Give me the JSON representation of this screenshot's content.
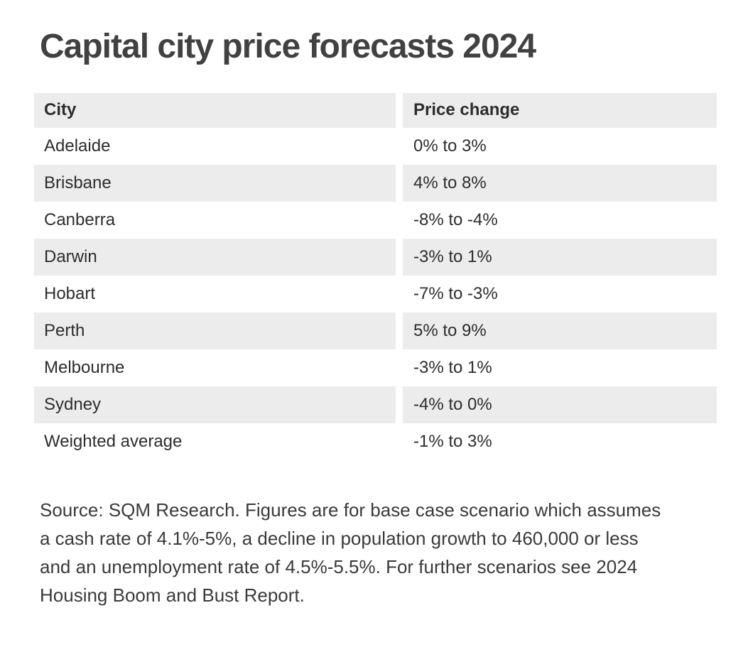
{
  "title": "Capital city price forecasts 2024",
  "chart_data": {
    "type": "table",
    "title": "Capital city price forecasts 2024",
    "columns": [
      "City",
      "Price change"
    ],
    "rows": [
      {
        "city": "Adelaide",
        "price_change": "0% to 3%",
        "low_pct": 0,
        "high_pct": 3
      },
      {
        "city": "Brisbane",
        "price_change": "4% to 8%",
        "low_pct": 4,
        "high_pct": 8
      },
      {
        "city": "Canberra",
        "price_change": "-8% to -4%",
        "low_pct": -8,
        "high_pct": -4
      },
      {
        "city": "Darwin",
        "price_change": "-3% to 1%",
        "low_pct": -3,
        "high_pct": 1
      },
      {
        "city": "Hobart",
        "price_change": "-7% to -3%",
        "low_pct": -7,
        "high_pct": -3
      },
      {
        "city": "Perth",
        "price_change": "5% to 9%",
        "low_pct": 5,
        "high_pct": 9
      },
      {
        "city": "Melbourne",
        "price_change": "-3% to 1%",
        "low_pct": -3,
        "high_pct": 1
      },
      {
        "city": "Sydney",
        "price_change": "-4% to 0%",
        "low_pct": -4,
        "high_pct": 0
      },
      {
        "city": "Weighted average",
        "price_change": "-1% to 3%",
        "low_pct": -1,
        "high_pct": 3
      }
    ],
    "source": "Source: SQM Research. Figures are for base case scenario which assumes a cash rate of 4.1%-5%, a decline in population growth to 460,000 or less and an unemployment rate of 4.5%-5.5%. For further scenarios see 2024 Housing Boom and Bust Report."
  },
  "source_note": {
    "lines": [
      "Source: SQM Research. Figures are for base case scenario which assumes",
      "a cash rate of 4.1%-5%, a decline in population growth to 460,000 or less",
      "and an unemployment rate of 4.5%-5.5%. For further scenarios see 2024",
      "Housing Boom and Bust Report."
    ]
  },
  "colors": {
    "background": "#ffffff",
    "row_shade": "#ececec",
    "title_text": "#414141",
    "table_text": "#2d2d2d",
    "note_text": "#3a3a3a"
  }
}
